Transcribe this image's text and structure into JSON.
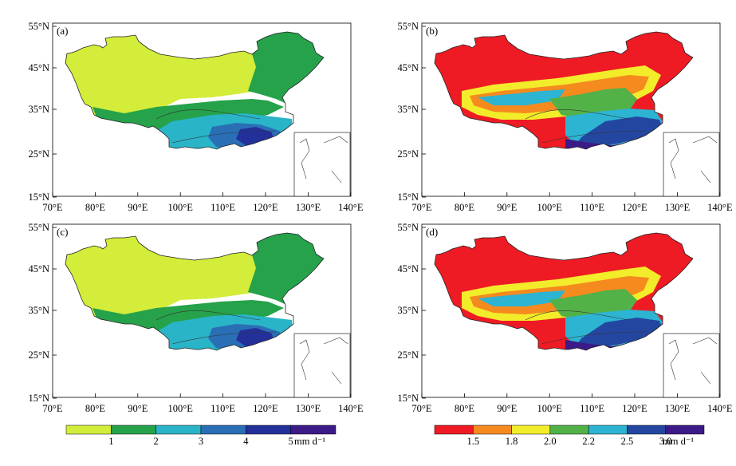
{
  "panels": [
    {
      "label": "(a)",
      "scheme": "left",
      "lat_ticks": [
        "55°N",
        "45°N",
        "35°N",
        "25°N",
        "15°N"
      ],
      "lon_ticks": [
        "70°E",
        "80°E",
        "90°E",
        "100°E",
        "110°E",
        "120°E",
        "130°E",
        "140°E"
      ]
    },
    {
      "label": "(b)",
      "scheme": "right",
      "lat_ticks": [
        "55°N",
        "45°N",
        "35°N",
        "25°N",
        "15°N"
      ],
      "lon_ticks": [
        "70°E",
        "80°E",
        "90°E",
        "100°E",
        "110°E",
        "120°E",
        "130°E",
        "140°E"
      ]
    },
    {
      "label": "(c)",
      "scheme": "left",
      "lat_ticks": [
        "55°N",
        "45°N",
        "35°N",
        "25°N",
        "15°N"
      ],
      "lon_ticks": [
        "70°E",
        "80°E",
        "90°E",
        "100°E",
        "110°E",
        "120°E",
        "130°E",
        "140°E"
      ]
    },
    {
      "label": "(d)",
      "scheme": "right",
      "lat_ticks": [
        "55°N",
        "45°N",
        "35°N",
        "25°N",
        "15°N"
      ],
      "lon_ticks": [
        "70°E",
        "80°E",
        "90°E",
        "100°E",
        "110°E",
        "120°E",
        "130°E",
        "140°E"
      ]
    }
  ],
  "colorbar_left": {
    "colors": [
      "#d4ec3a",
      "#25a24a",
      "#2ab4c8",
      "#2a6fb6",
      "#23309a",
      "#3c1a88"
    ],
    "labels": [
      "1",
      "2",
      "3",
      "4",
      "5"
    ],
    "unit": "mm d⁻¹"
  },
  "colorbar_right": {
    "colors": [
      "#ee1b24",
      "#f58a1f",
      "#f2ec2a",
      "#52b147",
      "#2cb4d2",
      "#2347a0",
      "#3c1a88"
    ],
    "labels": [
      "1.5",
      "1.8",
      "2.0",
      "2.2",
      "2.5",
      "3.0"
    ],
    "unit": "mm d⁻¹"
  }
}
